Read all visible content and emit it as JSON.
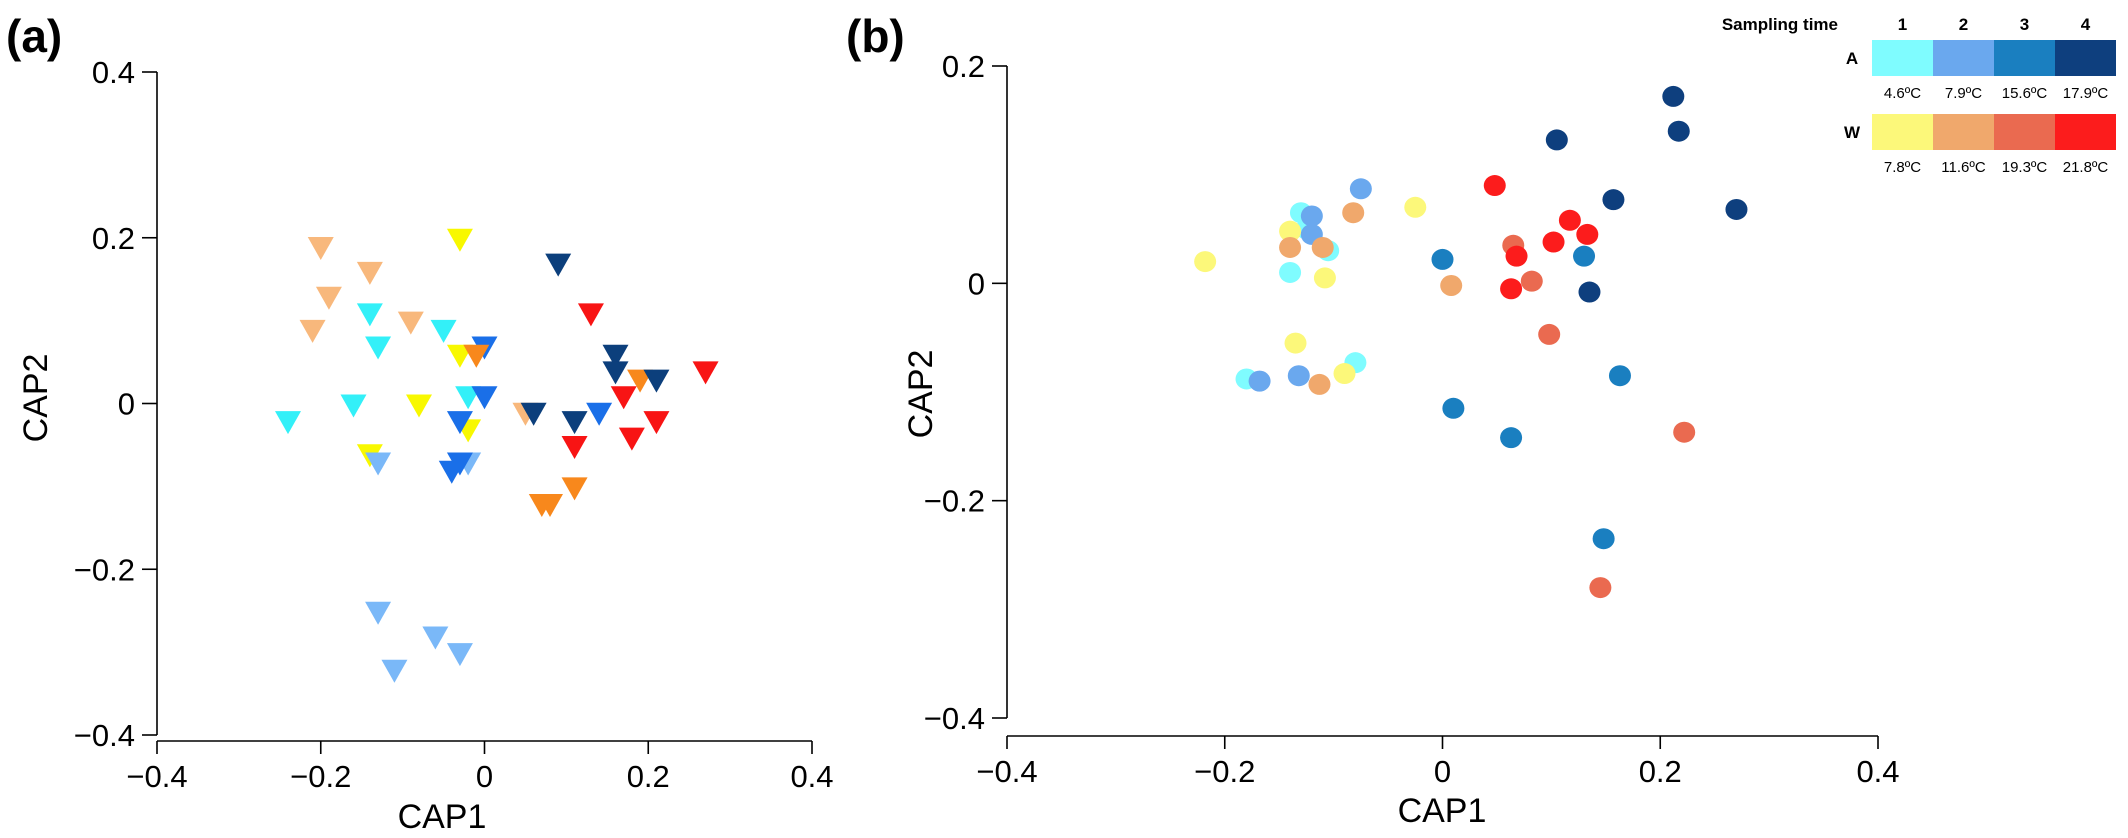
{
  "colors": {
    "A1": "#7ffcff",
    "A2": "#6aa8ee",
    "A3": "#1a7fc0",
    "A4": "#0e3f7e",
    "W1": "#fcf87a",
    "W2": "#f0a86c",
    "W3": "#ea6a50",
    "W4": "#fc1c1c"
  },
  "chart_data": [
    {
      "type": "scatter",
      "panel_label": "(a)",
      "xlabel": "CAP1",
      "ylabel": "CAP2",
      "xlim": [
        -0.4,
        0.4
      ],
      "ylim": [
        -0.4,
        0.4
      ],
      "xticks": [
        "−0.4",
        "−0.2",
        "0",
        "0.2",
        "0.4"
      ],
      "yticks": [
        "−0.4",
        "−0.2",
        "0",
        "0.2",
        "0.4"
      ],
      "marker": "triangle-down",
      "grid": false,
      "points": [
        {
          "x": -0.24,
          "y": -0.02,
          "color": "#33f0f8"
        },
        {
          "x": -0.16,
          "y": 0.0,
          "color": "#33f0f8"
        },
        {
          "x": -0.14,
          "y": 0.11,
          "color": "#33f0f8"
        },
        {
          "x": -0.13,
          "y": 0.07,
          "color": "#33f0f8"
        },
        {
          "x": -0.05,
          "y": 0.09,
          "color": "#33f0f8"
        },
        {
          "x": -0.02,
          "y": 0.01,
          "color": "#33f0f8"
        },
        {
          "x": -0.2,
          "y": 0.19,
          "color": "#f8b87c"
        },
        {
          "x": -0.19,
          "y": 0.13,
          "color": "#f8b87c"
        },
        {
          "x": -0.21,
          "y": 0.09,
          "color": "#f8b87c"
        },
        {
          "x": -0.14,
          "y": 0.16,
          "color": "#f8b87c"
        },
        {
          "x": -0.09,
          "y": 0.1,
          "color": "#f8b87c"
        },
        {
          "x": 0.05,
          "y": -0.01,
          "color": "#f8b87c"
        },
        {
          "x": -0.03,
          "y": 0.2,
          "color": "#f8f800"
        },
        {
          "x": -0.08,
          "y": 0.0,
          "color": "#f8f800"
        },
        {
          "x": -0.03,
          "y": 0.06,
          "color": "#f8f800"
        },
        {
          "x": -0.02,
          "y": -0.03,
          "color": "#f8f800"
        },
        {
          "x": -0.14,
          "y": -0.06,
          "color": "#f8f800"
        },
        {
          "x": -0.13,
          "y": -0.07,
          "color": "#7ab8f8"
        },
        {
          "x": -0.02,
          "y": -0.07,
          "color": "#7ab8f8"
        },
        {
          "x": -0.13,
          "y": -0.25,
          "color": "#7ab8f8"
        },
        {
          "x": -0.11,
          "y": -0.32,
          "color": "#7ab8f8"
        },
        {
          "x": -0.06,
          "y": -0.28,
          "color": "#7ab8f8"
        },
        {
          "x": -0.03,
          "y": -0.3,
          "color": "#7ab8f8"
        },
        {
          "x": 0.0,
          "y": 0.07,
          "color": "#1a6fe8"
        },
        {
          "x": 0.0,
          "y": 0.01,
          "color": "#1a6fe8"
        },
        {
          "x": -0.03,
          "y": -0.02,
          "color": "#1a6fe8"
        },
        {
          "x": -0.04,
          "y": -0.08,
          "color": "#1a6fe8"
        },
        {
          "x": -0.03,
          "y": -0.07,
          "color": "#1a6fe8"
        },
        {
          "x": 0.14,
          "y": -0.01,
          "color": "#1a6fe8"
        },
        {
          "x": -0.01,
          "y": 0.06,
          "color": "#f8881c"
        },
        {
          "x": 0.07,
          "y": -0.12,
          "color": "#f8881c"
        },
        {
          "x": 0.08,
          "y": -0.12,
          "color": "#f8881c"
        },
        {
          "x": 0.11,
          "y": -0.1,
          "color": "#f8881c"
        },
        {
          "x": 0.19,
          "y": 0.03,
          "color": "#f8881c"
        },
        {
          "x": 0.09,
          "y": 0.17,
          "color": "#0c3f7c"
        },
        {
          "x": 0.06,
          "y": -0.01,
          "color": "#0c3f7c"
        },
        {
          "x": 0.11,
          "y": -0.02,
          "color": "#0c3f7c"
        },
        {
          "x": 0.16,
          "y": 0.06,
          "color": "#0c3f7c"
        },
        {
          "x": 0.16,
          "y": 0.04,
          "color": "#0c3f7c"
        },
        {
          "x": 0.21,
          "y": 0.03,
          "color": "#0c3f7c"
        },
        {
          "x": 0.13,
          "y": 0.11,
          "color": "#f81414"
        },
        {
          "x": 0.17,
          "y": 0.01,
          "color": "#f81414"
        },
        {
          "x": 0.18,
          "y": -0.04,
          "color": "#f81414"
        },
        {
          "x": 0.21,
          "y": -0.02,
          "color": "#f81414"
        },
        {
          "x": 0.27,
          "y": 0.04,
          "color": "#f81414"
        },
        {
          "x": 0.11,
          "y": -0.05,
          "color": "#f81414"
        }
      ]
    },
    {
      "type": "scatter",
      "panel_label": "(b)",
      "xlabel": "CAP1",
      "ylabel": "CAP2",
      "xlim": [
        -0.4,
        0.4
      ],
      "ylim": [
        -0.4,
        0.2
      ],
      "xticks": [
        "−0.4",
        "−0.2",
        "0",
        "0.2",
        "0.4"
      ],
      "yticks": [
        "−0.4",
        "−0.2",
        "0",
        "0.2"
      ],
      "marker": "circle",
      "grid": false,
      "points": [
        {
          "x": -0.13,
          "y": 0.065,
          "color": "A1"
        },
        {
          "x": -0.125,
          "y": 0.05,
          "color": "A1"
        },
        {
          "x": -0.105,
          "y": 0.03,
          "color": "A1"
        },
        {
          "x": -0.14,
          "y": 0.01,
          "color": "A1"
        },
        {
          "x": -0.18,
          "y": -0.088,
          "color": "A1"
        },
        {
          "x": -0.08,
          "y": -0.073,
          "color": "A1"
        },
        {
          "x": -0.075,
          "y": 0.087,
          "color": "A2"
        },
        {
          "x": -0.12,
          "y": 0.062,
          "color": "A2"
        },
        {
          "x": -0.12,
          "y": 0.045,
          "color": "A2"
        },
        {
          "x": -0.168,
          "y": -0.09,
          "color": "A2"
        },
        {
          "x": -0.132,
          "y": -0.085,
          "color": "A2"
        },
        {
          "x": 0.0,
          "y": 0.022,
          "color": "A3"
        },
        {
          "x": 0.13,
          "y": 0.025,
          "color": "A3"
        },
        {
          "x": 0.01,
          "y": -0.115,
          "color": "A3"
        },
        {
          "x": 0.063,
          "y": -0.142,
          "color": "A3"
        },
        {
          "x": 0.163,
          "y": -0.085,
          "color": "A3"
        },
        {
          "x": 0.148,
          "y": -0.235,
          "color": "A3"
        },
        {
          "x": 0.105,
          "y": 0.132,
          "color": "A4"
        },
        {
          "x": 0.212,
          "y": 0.172,
          "color": "A4"
        },
        {
          "x": 0.217,
          "y": 0.14,
          "color": "A4"
        },
        {
          "x": 0.157,
          "y": 0.077,
          "color": "A4"
        },
        {
          "x": 0.27,
          "y": 0.068,
          "color": "A4"
        },
        {
          "x": 0.135,
          "y": -0.008,
          "color": "A4"
        },
        {
          "x": -0.218,
          "y": 0.02,
          "color": "W1"
        },
        {
          "x": -0.14,
          "y": 0.048,
          "color": "W1"
        },
        {
          "x": -0.108,
          "y": 0.005,
          "color": "W1"
        },
        {
          "x": -0.025,
          "y": 0.07,
          "color": "W1"
        },
        {
          "x": -0.135,
          "y": -0.055,
          "color": "W1"
        },
        {
          "x": -0.09,
          "y": -0.083,
          "color": "W1"
        },
        {
          "x": -0.082,
          "y": 0.065,
          "color": "W2"
        },
        {
          "x": -0.14,
          "y": 0.033,
          "color": "W2"
        },
        {
          "x": -0.11,
          "y": 0.033,
          "color": "W2"
        },
        {
          "x": 0.008,
          "y": -0.002,
          "color": "W2"
        },
        {
          "x": -0.113,
          "y": -0.093,
          "color": "W2"
        },
        {
          "x": 0.065,
          "y": 0.035,
          "color": "W3"
        },
        {
          "x": 0.082,
          "y": 0.002,
          "color": "W3"
        },
        {
          "x": 0.098,
          "y": -0.047,
          "color": "W3"
        },
        {
          "x": 0.222,
          "y": -0.137,
          "color": "W3"
        },
        {
          "x": 0.145,
          "y": -0.28,
          "color": "W3"
        },
        {
          "x": 0.048,
          "y": 0.09,
          "color": "W4"
        },
        {
          "x": 0.068,
          "y": 0.025,
          "color": "W4"
        },
        {
          "x": 0.063,
          "y": -0.005,
          "color": "W4"
        },
        {
          "x": 0.102,
          "y": 0.038,
          "color": "W4"
        },
        {
          "x": 0.117,
          "y": 0.058,
          "color": "W4"
        },
        {
          "x": 0.133,
          "y": 0.045,
          "color": "W4"
        }
      ]
    }
  ],
  "legend": {
    "title": "Sampling time",
    "columns": [
      "1",
      "2",
      "3",
      "4"
    ],
    "rows": [
      {
        "label": "A",
        "keys": [
          "A1",
          "A2",
          "A3",
          "A4"
        ],
        "temps": [
          "4.6ºC",
          "7.9ºC",
          "15.6ºC",
          "17.9ºC"
        ]
      },
      {
        "label": "W",
        "keys": [
          "W1",
          "W2",
          "W3",
          "W4"
        ],
        "temps": [
          "7.8ºC",
          "11.6ºC",
          "19.3ºC",
          "21.8ºC"
        ]
      }
    ]
  }
}
